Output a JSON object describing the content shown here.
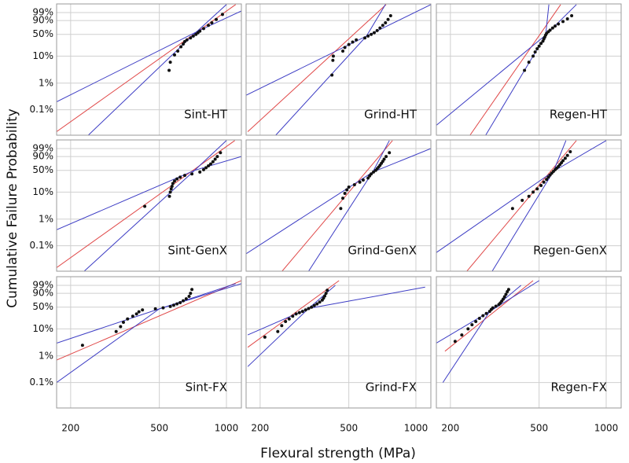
{
  "xlabel": "Flexural strength (MPa)",
  "ylabel": "Cumulative Failure Probability",
  "axes": {
    "xscale": "log",
    "yscale": "weibull",
    "grid": true,
    "xlim": [
      173,
      1167
    ],
    "xticks": [
      200,
      500,
      1000
    ],
    "ylim": [
      0.011,
      99.994
    ],
    "yticks": [
      {
        "value": 0.1,
        "label": "0.1%"
      },
      {
        "value": 1,
        "label": "1%"
      },
      {
        "value": 10,
        "label": "10%"
      },
      {
        "value": 50,
        "label": "50%"
      },
      {
        "value": 90,
        "label": "90%"
      },
      {
        "value": 99,
        "label": "99%"
      }
    ]
  },
  "chart_data": [
    {
      "type": "scatter",
      "annotation": "Sint-HT",
      "color": "#111111",
      "x": [
        553,
        560,
        585,
        605,
        625,
        640,
        650,
        665,
        690,
        710,
        730,
        745,
        760,
        790,
        830,
        860,
        900,
        960
      ],
      "values": [
        3,
        6,
        11,
        15,
        21,
        26,
        31,
        35,
        40,
        45,
        50,
        55,
        60,
        68,
        78,
        85,
        92,
        98
      ],
      "lines": [
        {
          "color": "#e04848",
          "x": [
            173,
            1100
          ],
          "values": [
            0.015,
            99.99
          ]
        },
        {
          "color": "#3c3cc4",
          "x": [
            173,
            760,
            1167
          ],
          "values": [
            0.2,
            63,
            99.5
          ]
        },
        {
          "color": "#3c3cc4",
          "x": [
            240,
            700,
            1000
          ],
          "values": [
            0.011,
            45,
            99.99
          ]
        }
      ]
    },
    {
      "type": "scatter",
      "annotation": "Grind-HT",
      "color": "#111111",
      "x": [
        420,
        424,
        426,
        470,
        480,
        500,
        520,
        540,
        590,
        610,
        630,
        650,
        670,
        690,
        710,
        730,
        750,
        770
      ],
      "values": [
        2,
        7,
        10,
        15,
        20,
        25,
        30,
        35,
        40,
        45,
        50,
        55,
        62,
        70,
        78,
        85,
        92,
        97
      ],
      "lines": [
        {
          "color": "#e04848",
          "x": [
            176,
            735
          ],
          "values": [
            0.015,
            99.99
          ]
        },
        {
          "color": "#3c3cc4",
          "x": [
            173,
            600,
            1167
          ],
          "values": [
            0.35,
            45,
            99.99
          ]
        },
        {
          "color": "#3c3cc4",
          "x": [
            235,
            600,
            730
          ],
          "values": [
            0.011,
            45,
            99.99
          ]
        }
      ]
    },
    {
      "type": "scatter",
      "annotation": "Regen-HT",
      "color": "#111111",
      "x": [
        430,
        450,
        470,
        480,
        490,
        500,
        510,
        520,
        525,
        530,
        535,
        540,
        550,
        560,
        575,
        590,
        610,
        640,
        670,
        700
      ],
      "values": [
        3,
        6,
        10,
        14,
        18,
        22,
        27,
        32,
        37,
        42,
        48,
        53,
        58,
        63,
        70,
        76,
        82,
        88,
        93,
        97
      ],
      "lines": [
        {
          "color": "#e04848",
          "x": [
            245,
            625
          ],
          "values": [
            0.011,
            99.99
          ]
        },
        {
          "color": "#3c3cc4",
          "x": [
            173,
            535,
            735
          ],
          "values": [
            0.026,
            48,
            99.99
          ]
        },
        {
          "color": "#3c3cc4",
          "x": [
            288,
            535,
            553
          ],
          "values": [
            0.011,
            48,
            99.99
          ]
        }
      ]
    },
    {
      "type": "scatter",
      "annotation": "Sint-GenX",
      "color": "#111111",
      "x": [
        430,
        555,
        560,
        565,
        570,
        575,
        585,
        600,
        620,
        650,
        700,
        760,
        790,
        810,
        830,
        850,
        870,
        890,
        910,
        940
      ],
      "values": [
        3,
        7,
        10,
        13,
        16,
        20,
        24,
        28,
        32,
        36,
        40,
        45,
        52,
        58,
        64,
        70,
        77,
        84,
        90,
        96
      ],
      "lines": [
        {
          "color": "#e04848",
          "x": [
            173,
            1090
          ],
          "values": [
            0.015,
            99.99
          ]
        },
        {
          "color": "#3c3cc4",
          "x": [
            173,
            720,
            1167
          ],
          "values": [
            0.4,
            50,
            90
          ]
        },
        {
          "color": "#3c3cc4",
          "x": [
            230,
            720,
            1000
          ],
          "values": [
            0.011,
            50,
            99.99
          ]
        }
      ]
    },
    {
      "type": "scatter",
      "annotation": "Grind-GenX",
      "color": "#111111",
      "x": [
        460,
        470,
        480,
        490,
        500,
        530,
        560,
        580,
        610,
        620,
        630,
        645,
        660,
        670,
        680,
        690,
        700,
        710,
        720,
        735,
        760
      ],
      "values": [
        2.5,
        6,
        9,
        12,
        15,
        18,
        22,
        26,
        30,
        35,
        40,
        45,
        50,
        55,
        60,
        66,
        72,
        78,
        84,
        90,
        96
      ],
      "lines": [
        {
          "color": "#e04848",
          "x": [
            251,
            785
          ],
          "values": [
            0.011,
            99.99
          ]
        },
        {
          "color": "#3c3cc4",
          "x": [
            173,
            640,
            1167
          ],
          "values": [
            0.05,
            45,
            99
          ]
        },
        {
          "color": "#3c3cc4",
          "x": [
            330,
            640,
            760
          ],
          "values": [
            0.011,
            45,
            99.99
          ]
        }
      ]
    },
    {
      "type": "scatter",
      "annotation": "Regen-GenX",
      "color": "#111111",
      "x": [
        380,
        420,
        450,
        470,
        490,
        510,
        525,
        540,
        550,
        560,
        570,
        580,
        590,
        600,
        610,
        620,
        630,
        640,
        655,
        670,
        690
      ],
      "values": [
        2.5,
        5,
        7,
        10,
        13,
        17,
        22,
        27,
        32,
        37,
        42,
        47,
        52,
        57,
        62,
        68,
        74,
        80,
        86,
        92,
        97
      ],
      "lines": [
        {
          "color": "#e04848",
          "x": [
            237,
            735
          ],
          "values": [
            0.011,
            99.99
          ]
        },
        {
          "color": "#3c3cc4",
          "x": [
            170,
            580,
            1000
          ],
          "values": [
            0.05,
            47,
            99.99
          ]
        },
        {
          "color": "#3c3cc4",
          "x": [
            308,
            580,
            660
          ],
          "values": [
            0.011,
            47,
            99.99
          ]
        }
      ]
    },
    {
      "type": "scatter",
      "annotation": "Sint-FX",
      "color": "#111111",
      "x": [
        226,
        320,
        335,
        345,
        360,
        380,
        395,
        405,
        420,
        480,
        520,
        560,
        580,
        600,
        620,
        640,
        660,
        680,
        690,
        700
      ],
      "values": [
        2.5,
        8,
        12,
        17,
        22,
        27,
        32,
        37,
        42,
        45,
        48,
        52,
        56,
        60,
        64,
        70,
        76,
        83,
        90,
        96
      ],
      "lines": [
        {
          "color": "#e04848",
          "x": [
            173,
            1167
          ],
          "values": [
            0.7,
            99.9
          ]
        },
        {
          "color": "#3c3cc4",
          "x": [
            173,
            500,
            1167
          ],
          "values": [
            3,
            45,
            99.5
          ]
        },
        {
          "color": "#3c3cc4",
          "x": [
            173,
            500,
            1100
          ],
          "values": [
            0.1,
            45,
            99.5
          ]
        }
      ]
    },
    {
      "type": "scatter",
      "annotation": "Grind-FX",
      "color": "#111111",
      "x": [
        210,
        240,
        250,
        260,
        270,
        280,
        290,
        300,
        310,
        320,
        330,
        340,
        350,
        360,
        370,
        380,
        385,
        390,
        395,
        400
      ],
      "values": [
        5,
        8,
        13,
        18,
        22,
        27,
        32,
        35,
        38,
        42,
        46,
        50,
        55,
        60,
        66,
        72,
        78,
        84,
        90,
        95
      ],
      "lines": [
        {
          "color": "#e04848",
          "x": [
            176,
            452
          ],
          "values": [
            2.1,
            99.9
          ]
        },
        {
          "color": "#3c3cc4",
          "x": [
            176,
            330,
            1100
          ],
          "values": [
            6,
            46,
            98
          ]
        },
        {
          "color": "#3c3cc4",
          "x": [
            176,
            330,
            435
          ],
          "values": [
            0.4,
            46,
            99
          ]
        }
      ]
    },
    {
      "type": "scatter",
      "annotation": "Regen-FX",
      "color": "#111111",
      "x": [
        210,
        225,
        240,
        250,
        260,
        270,
        280,
        290,
        300,
        305,
        310,
        320,
        330,
        335,
        340,
        345,
        350,
        355,
        360,
        365
      ],
      "values": [
        3.5,
        6,
        10,
        14,
        18,
        23,
        28,
        33,
        38,
        43,
        48,
        53,
        58,
        63,
        69,
        75,
        82,
        88,
        93,
        96
      ],
      "lines": [
        {
          "color": "#e04848",
          "x": [
            189,
            470
          ],
          "values": [
            1.5,
            99.9
          ]
        },
        {
          "color": "#3c3cc4",
          "x": [
            173,
            300,
            500
          ],
          "values": [
            3,
            38,
            99.9
          ]
        },
        {
          "color": "#3c3cc4",
          "x": [
            185,
            300,
            415
          ],
          "values": [
            0.1,
            38,
            99
          ]
        }
      ]
    }
  ]
}
